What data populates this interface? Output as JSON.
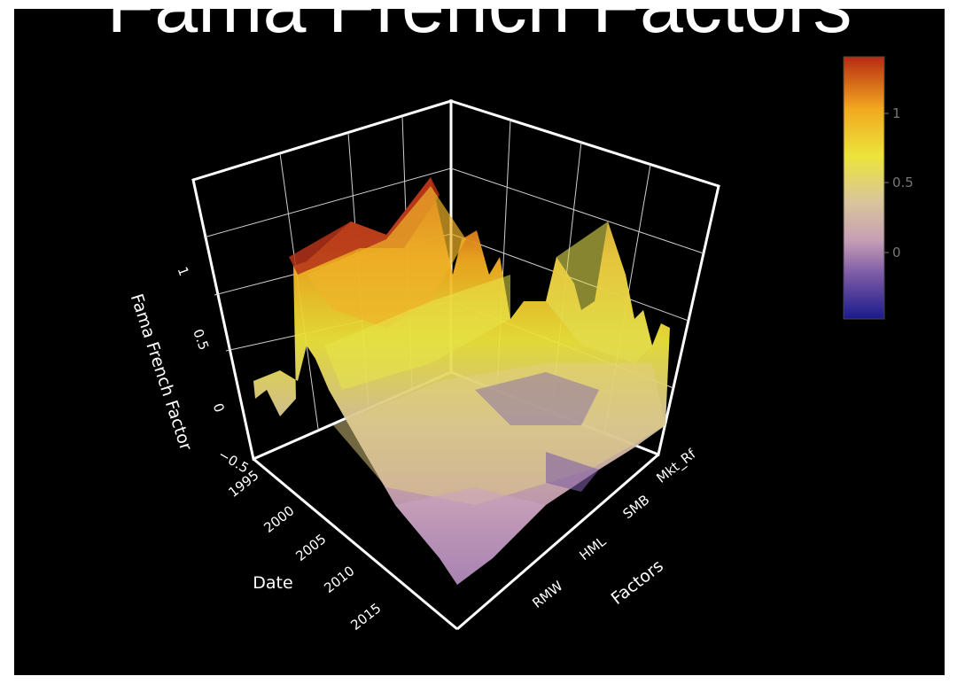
{
  "chart_data": {
    "type": "surface",
    "title": "Fama French Factors",
    "xlabel": "Date",
    "ylabel": "Factors",
    "zlabel": "Fama French Factor",
    "x_ticks": [
      "1995",
      "2000",
      "2005",
      "2010",
      "2015"
    ],
    "x_range": [
      1993,
      2018
    ],
    "y_categories": [
      "RMW",
      "HML",
      "SMB",
      "Mkt_Rf"
    ],
    "z_ticks": [
      "−0.5",
      "0",
      "0.5",
      "1"
    ],
    "zlim": [
      -0.5,
      1.35
    ],
    "colorbar": {
      "ticks": [
        "0",
        "0.5",
        "1"
      ],
      "range": [
        -0.45,
        1.35
      ],
      "colorscale": [
        "#1a1a8c",
        "#7b5aa6",
        "#c79fb5",
        "#d9c69a",
        "#ede43a",
        "#f2a91f",
        "#b82a13"
      ]
    },
    "surface_peaks": [
      {
        "factor": "RMW",
        "date": 1999.5,
        "value": 1.05
      },
      {
        "factor": "RMW",
        "date": 2002,
        "value": 0.9
      },
      {
        "factor": "HML",
        "date": 2000.5,
        "value": 1.3
      },
      {
        "factor": "HML",
        "date": 2009,
        "value": 0.75
      },
      {
        "factor": "SMB",
        "date": 2000,
        "value": 0.85
      },
      {
        "factor": "SMB",
        "date": 2009,
        "value": 0.95
      },
      {
        "factor": "Mkt_Rf",
        "date": 2000,
        "value": 0.65
      },
      {
        "factor": "Mkt_Rf",
        "date": 2009,
        "value": 0.55
      }
    ]
  }
}
